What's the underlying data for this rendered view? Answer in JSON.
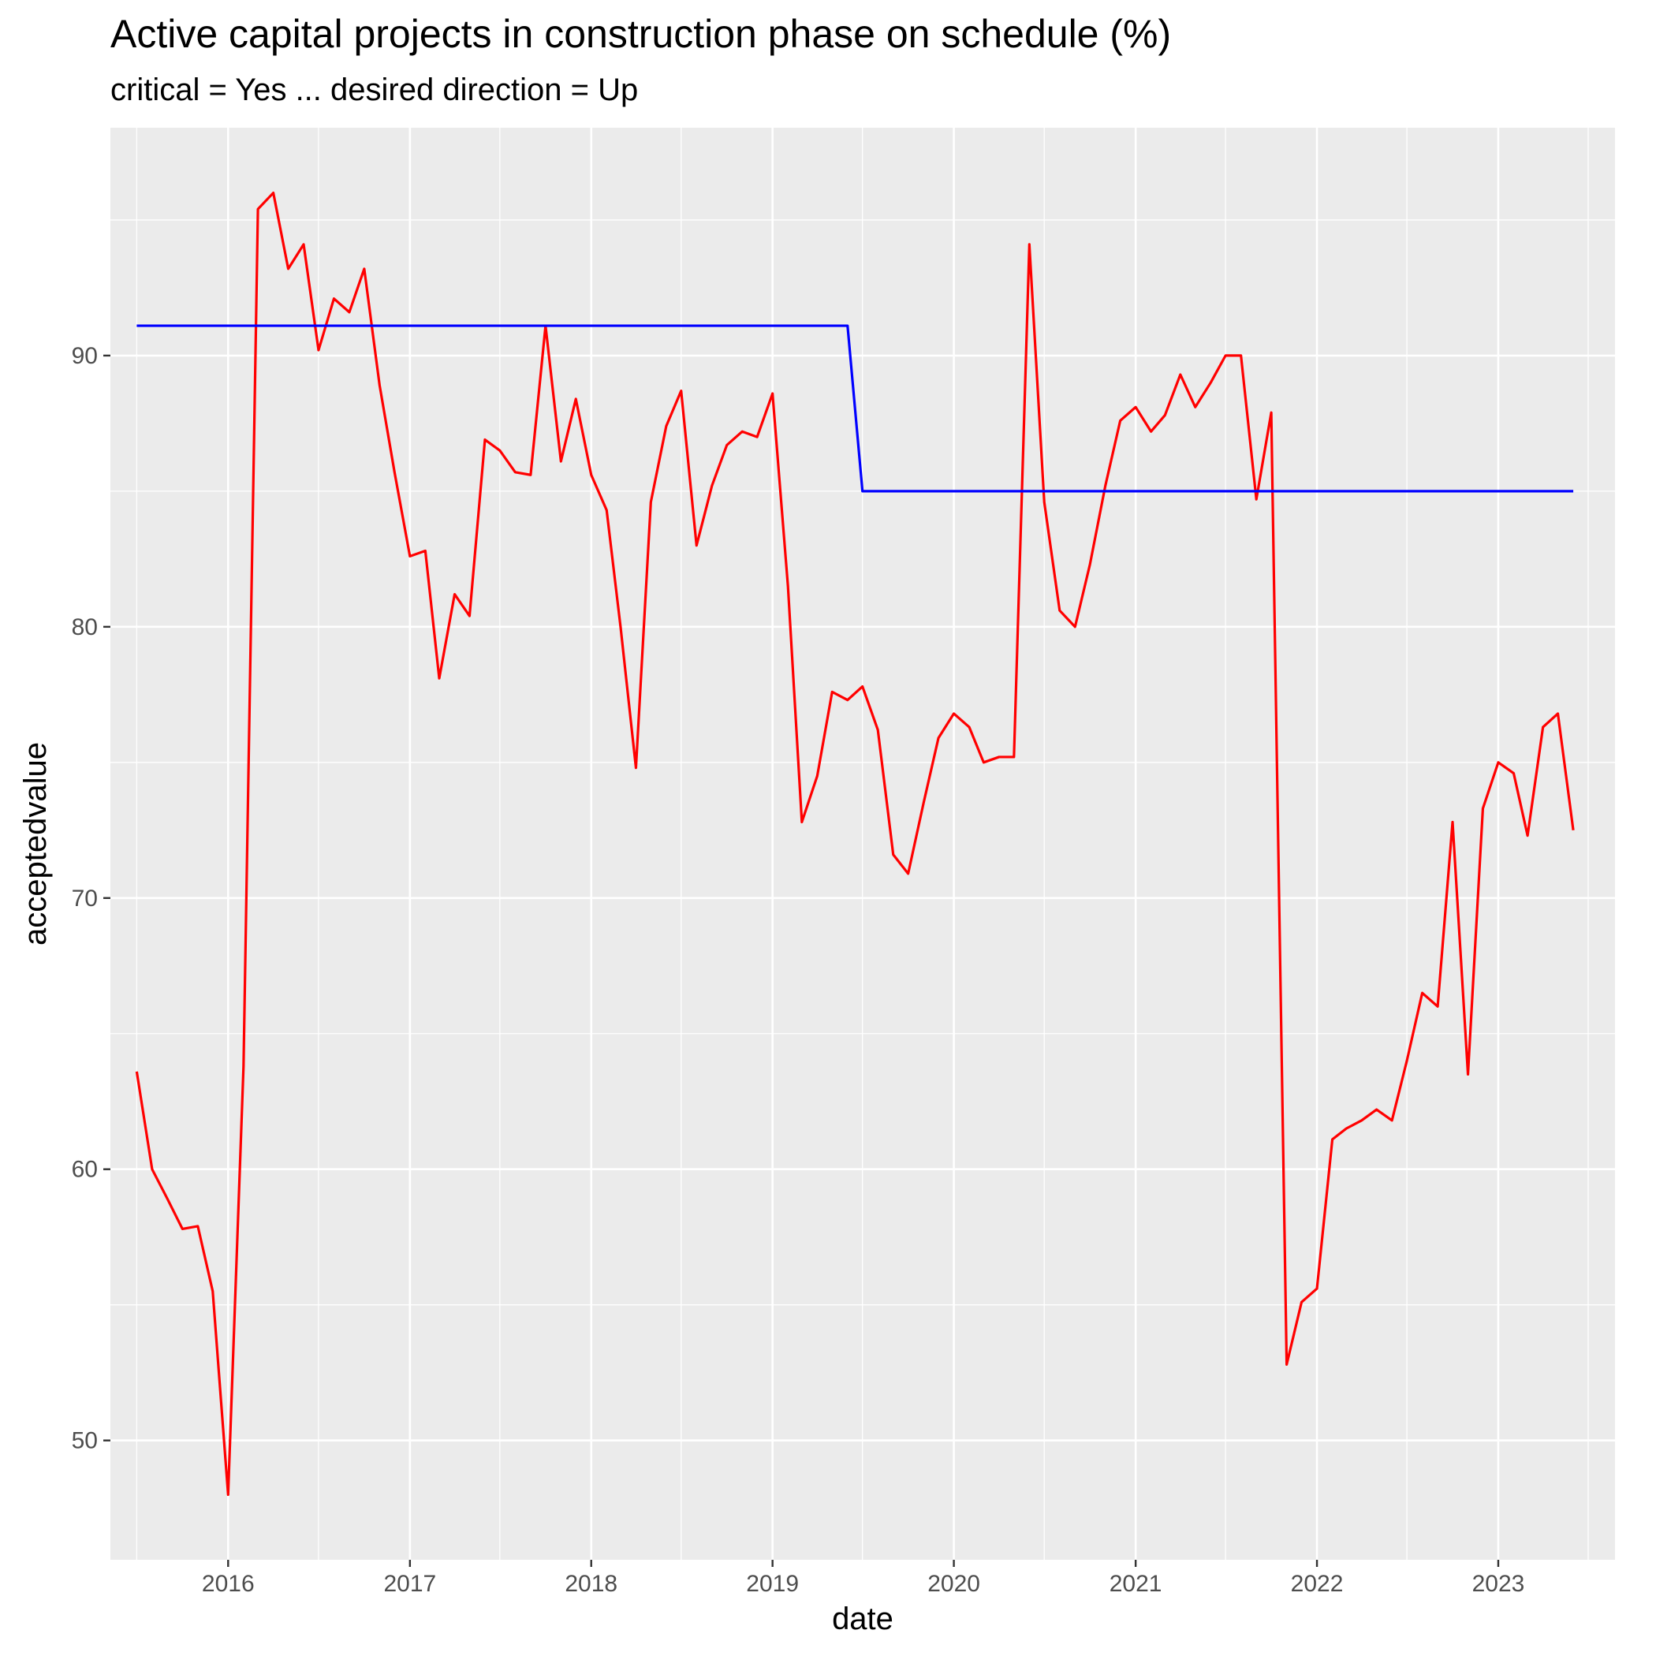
{
  "chart_data": {
    "type": "line",
    "title": "Active capital projects in construction phase on schedule (%)",
    "subtitle": "critical = Yes ... desired direction = Up",
    "xlabel": "date",
    "ylabel": "acceptedvalue",
    "x_ticks": [
      "2016",
      "2017",
      "2018",
      "2019",
      "2020",
      "2021",
      "2022",
      "2023"
    ],
    "y_ticks": [
      50,
      60,
      70,
      80,
      90
    ],
    "ylim": [
      45.6,
      98.4
    ],
    "xlim": [
      "2015-05-09",
      "2023-08-24"
    ],
    "grid": true,
    "series": [
      {
        "color": "#ff0000",
        "points": [
          [
            "2015-07-01",
            63.6
          ],
          [
            "2015-08-01",
            60.0
          ],
          [
            "2015-09-01",
            58.9
          ],
          [
            "2015-10-01",
            57.8
          ],
          [
            "2015-11-01",
            57.9
          ],
          [
            "2015-12-01",
            55.5
          ],
          [
            "2016-01-01",
            48.0
          ],
          [
            "2016-02-01",
            63.8
          ],
          [
            "2016-03-01",
            95.4
          ],
          [
            "2016-04-01",
            96.0
          ],
          [
            "2016-05-01",
            93.2
          ],
          [
            "2016-06-01",
            94.1
          ],
          [
            "2016-07-01",
            90.2
          ],
          [
            "2016-08-01",
            92.1
          ],
          [
            "2016-09-01",
            91.6
          ],
          [
            "2016-10-01",
            93.2
          ],
          [
            "2016-11-01",
            88.9
          ],
          [
            "2016-12-01",
            85.7
          ],
          [
            "2017-01-01",
            82.6
          ],
          [
            "2017-02-01",
            82.8
          ],
          [
            "2017-03-01",
            78.1
          ],
          [
            "2017-04-01",
            81.2
          ],
          [
            "2017-05-01",
            80.4
          ],
          [
            "2017-06-01",
            86.9
          ],
          [
            "2017-07-01",
            86.5
          ],
          [
            "2017-08-01",
            85.7
          ],
          [
            "2017-09-01",
            85.6
          ],
          [
            "2017-10-01",
            91.1
          ],
          [
            "2017-11-01",
            86.1
          ],
          [
            "2017-12-01",
            88.4
          ],
          [
            "2018-01-01",
            85.6
          ],
          [
            "2018-02-01",
            84.3
          ],
          [
            "2018-03-01",
            80.0
          ],
          [
            "2018-04-01",
            74.8
          ],
          [
            "2018-05-01",
            84.6
          ],
          [
            "2018-06-01",
            87.4
          ],
          [
            "2018-07-01",
            88.7
          ],
          [
            "2018-08-01",
            83.0
          ],
          [
            "2018-09-01",
            85.2
          ],
          [
            "2018-10-01",
            86.7
          ],
          [
            "2018-11-01",
            87.2
          ],
          [
            "2018-12-01",
            87.0
          ],
          [
            "2019-01-01",
            88.6
          ],
          [
            "2019-02-01",
            81.5
          ],
          [
            "2019-03-01",
            72.8
          ],
          [
            "2019-04-01",
            74.5
          ],
          [
            "2019-05-01",
            77.6
          ],
          [
            "2019-06-01",
            77.3
          ],
          [
            "2019-07-01",
            77.8
          ],
          [
            "2019-08-01",
            76.2
          ],
          [
            "2019-09-01",
            71.6
          ],
          [
            "2019-10-01",
            70.9
          ],
          [
            "2019-11-01",
            73.5
          ],
          [
            "2019-12-01",
            75.9
          ],
          [
            "2020-01-01",
            76.8
          ],
          [
            "2020-02-01",
            76.3
          ],
          [
            "2020-03-01",
            75.0
          ],
          [
            "2020-04-01",
            75.2
          ],
          [
            "2020-05-01",
            75.2
          ],
          [
            "2020-06-01",
            94.1
          ],
          [
            "2020-07-01",
            84.6
          ],
          [
            "2020-08-01",
            80.6
          ],
          [
            "2020-09-01",
            80.0
          ],
          [
            "2020-10-01",
            82.3
          ],
          [
            "2020-11-01",
            85.2
          ],
          [
            "2020-12-01",
            87.6
          ],
          [
            "2021-01-01",
            88.1
          ],
          [
            "2021-02-01",
            87.2
          ],
          [
            "2021-03-01",
            87.8
          ],
          [
            "2021-04-01",
            89.3
          ],
          [
            "2021-05-01",
            88.1
          ],
          [
            "2021-06-01",
            89.0
          ],
          [
            "2021-07-01",
            90.0
          ],
          [
            "2021-08-01",
            90.0
          ],
          [
            "2021-09-01",
            84.7
          ],
          [
            "2021-10-01",
            87.9
          ],
          [
            "2021-11-01",
            52.8
          ],
          [
            "2021-12-01",
            55.1
          ],
          [
            "2022-01-01",
            55.6
          ],
          [
            "2022-02-01",
            61.1
          ],
          [
            "2022-03-01",
            61.5
          ],
          [
            "2022-04-01",
            61.8
          ],
          [
            "2022-05-01",
            62.2
          ],
          [
            "2022-06-01",
            61.8
          ],
          [
            "2022-07-01",
            64.0
          ],
          [
            "2022-08-01",
            66.5
          ],
          [
            "2022-09-01",
            66.0
          ],
          [
            "2022-10-01",
            72.8
          ],
          [
            "2022-11-01",
            63.5
          ],
          [
            "2022-12-01",
            73.3
          ],
          [
            "2023-01-01",
            75.0
          ],
          [
            "2023-02-01",
            74.6
          ],
          [
            "2023-03-01",
            72.3
          ],
          [
            "2023-04-01",
            76.3
          ],
          [
            "2023-05-01",
            76.8
          ],
          [
            "2023-06-01",
            72.5
          ]
        ]
      },
      {
        "color": "#0000ff",
        "points": [
          [
            "2015-07-01",
            91.1
          ],
          [
            "2019-06-01",
            91.1
          ],
          [
            "2019-07-01",
            85.0
          ],
          [
            "2023-06-01",
            85.0
          ]
        ]
      }
    ],
    "colors": {
      "panel": "#ebebeb",
      "grid": "#ffffff",
      "tick_text": "#4d4d4d",
      "tick_mark": "#333333"
    }
  }
}
